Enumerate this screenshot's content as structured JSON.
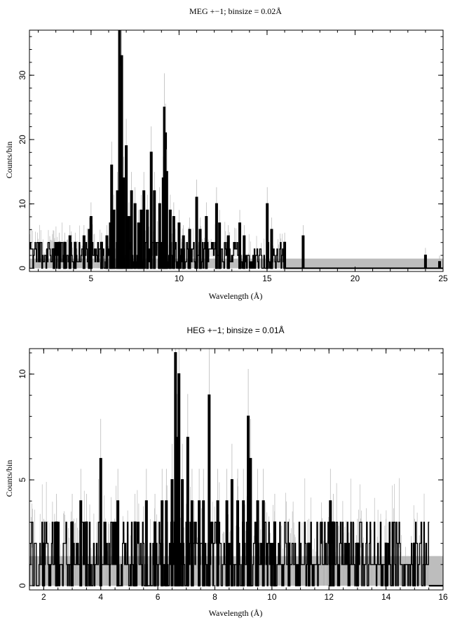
{
  "colors": {
    "background": "#ffffff",
    "data": "#000000",
    "error": "#b0b0b0",
    "band": "#bdbdbd",
    "axis": "#000000"
  },
  "chart_data": [
    {
      "type": "line",
      "title": "MEG +−1; binsize = 0.02Å",
      "xlabel": "Wavelength (Å)",
      "ylabel": "Counts/bin",
      "xlim": [
        1.5,
        25
      ],
      "ylim": [
        -0.5,
        37
      ],
      "xticks": [
        5,
        10,
        15,
        20,
        25
      ],
      "yticks": [
        0,
        10,
        20,
        30
      ],
      "grid": false,
      "band": [
        0,
        1.5
      ],
      "noise": {
        "x_range": [
          1.5,
          16
        ],
        "levels": [
          0,
          1,
          2,
          3,
          4
        ],
        "error_max": 6
      },
      "series": [
        {
          "type": "peaks",
          "x": [
            2.9,
            3.2,
            3.5,
            3.8,
            4.1,
            4.6,
            4.9,
            5.0,
            5.6,
            5.9,
            6.1,
            6.17,
            6.3,
            6.5,
            6.62,
            6.68,
            6.74,
            6.85,
            7.0,
            7.15,
            7.3,
            7.5,
            7.7,
            7.85,
            8.0,
            8.2,
            8.42,
            8.6,
            8.9,
            9.1,
            9.17,
            9.23,
            9.3,
            9.5,
            9.7,
            10.0,
            10.25,
            10.6,
            11.0,
            11.2,
            11.55,
            12.13,
            12.3,
            12.8,
            13.45,
            13.7,
            15.01,
            15.26,
            16.0,
            17.05,
            24.0,
            24.8
          ],
          "y": [
            3,
            4,
            4,
            5,
            4,
            5,
            6,
            8,
            4,
            5,
            7,
            16,
            9,
            12,
            37,
            26,
            33,
            14,
            19,
            8,
            12,
            10,
            7,
            9,
            12,
            9,
            18,
            12,
            10,
            14,
            25,
            21,
            15,
            9,
            8,
            7,
            5,
            6,
            11,
            6,
            8,
            10,
            7,
            5,
            7,
            5,
            10,
            6,
            4,
            5,
            2,
            1
          ]
        }
      ]
    },
    {
      "type": "line",
      "title": "HEG +−1; binsize = 0.01Å",
      "xlabel": "Wavelength (Å)",
      "ylabel": "Counts/bin",
      "xlim": [
        1.5,
        16
      ],
      "ylim": [
        -0.2,
        11.2
      ],
      "xticks": [
        2,
        4,
        6,
        8,
        10,
        12,
        14,
        16
      ],
      "yticks": [
        0,
        5,
        10
      ],
      "grid": false,
      "band": [
        0,
        1.4
      ],
      "noise": {
        "x_range": [
          1.5,
          15.5
        ],
        "levels": [
          0,
          1,
          1,
          2,
          3
        ],
        "error_max": 3.5
      },
      "series": [
        {
          "type": "peaks",
          "x": [
            2.0,
            2.45,
            3.0,
            3.3,
            3.5,
            4.0,
            4.6,
            5.2,
            5.6,
            5.9,
            6.15,
            6.3,
            6.5,
            6.62,
            6.68,
            6.74,
            6.86,
            7.05,
            7.2,
            7.45,
            7.6,
            7.8,
            8.1,
            8.42,
            8.6,
            8.8,
            9.0,
            9.17,
            9.25,
            9.5,
            9.7,
            10.1,
            10.6,
            11.3,
            12.05,
            12.15,
            13.0,
            14.0,
            15.0
          ],
          "y": [
            2,
            3,
            3,
            4,
            3,
            6,
            4,
            3,
            4,
            3,
            4,
            4,
            5,
            11,
            7,
            10,
            5,
            7,
            4,
            4,
            4,
            9,
            4,
            4,
            5,
            4,
            4,
            8,
            6,
            4,
            4,
            3,
            2,
            2,
            4,
            3,
            2,
            2,
            2
          ]
        }
      ]
    }
  ]
}
